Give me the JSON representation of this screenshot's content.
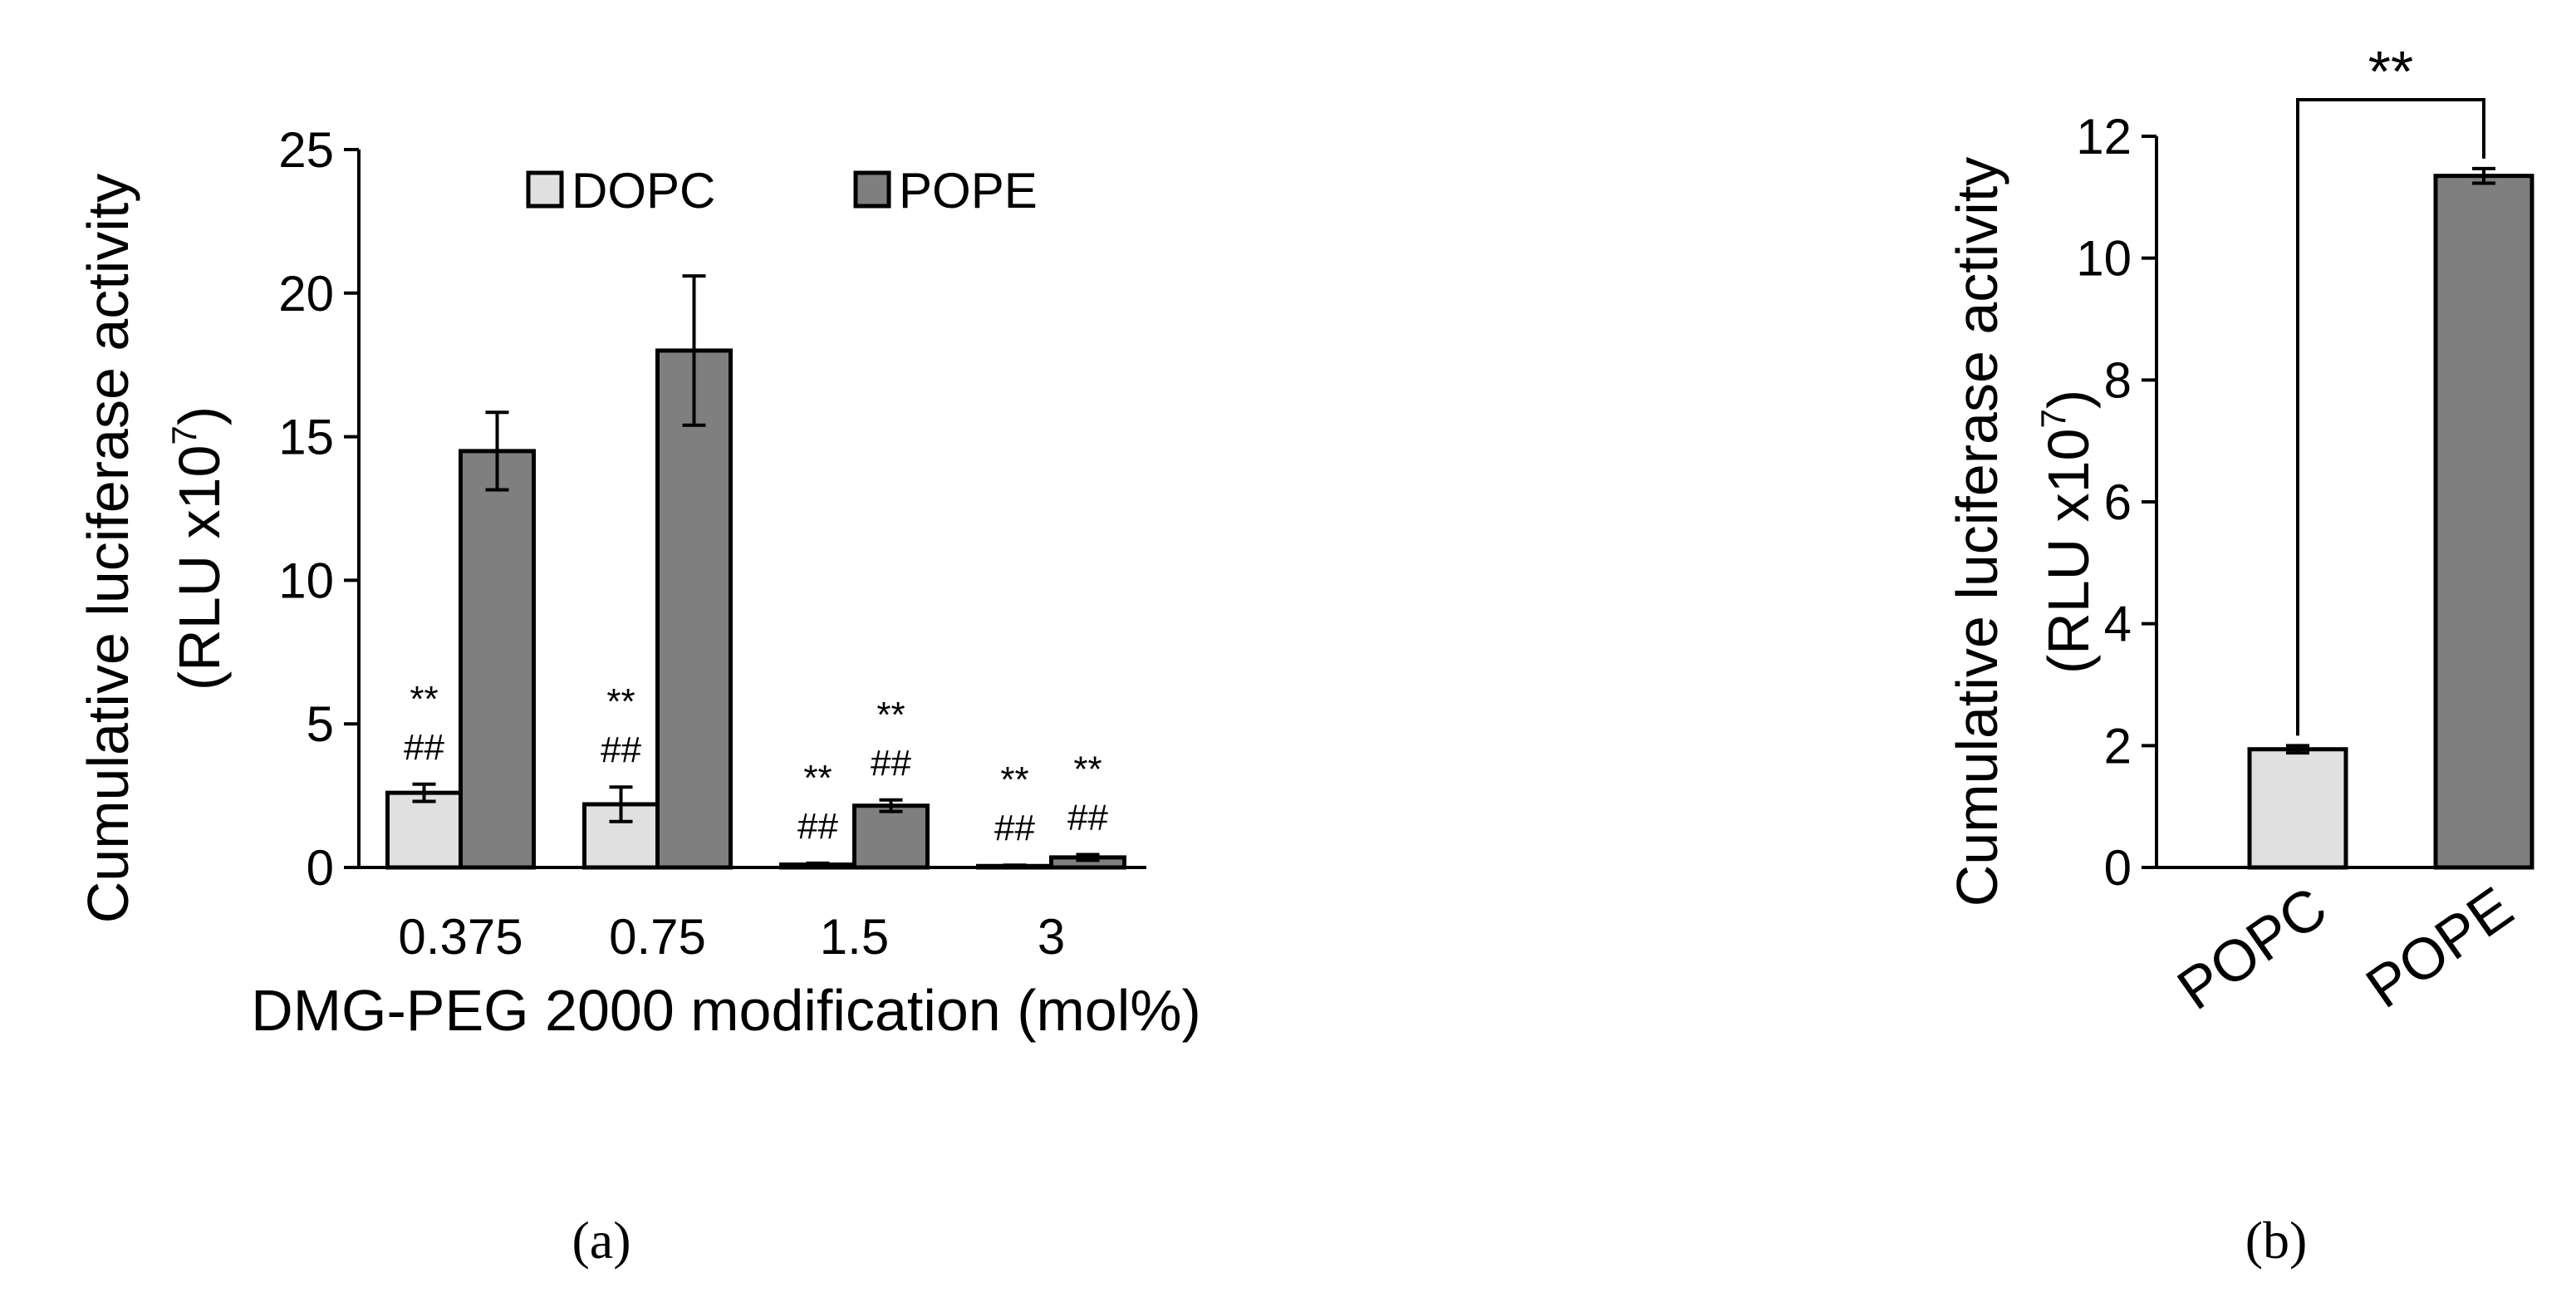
{
  "chart_data": [
    {
      "type": "bar",
      "ylabel": "Cumulative luciferase activity",
      "ylabel_unit": {
        "prefix": "(RLU x10",
        "sup": "7",
        "suffix": ")"
      },
      "xlabel": "DMG-PEG 2000 modification (mol%)",
      "caption": "(a)",
      "categories": [
        "0.375",
        "0.75",
        "1.5",
        "3"
      ],
      "series": [
        {
          "name": "DOPC",
          "color": "#e0e0e0",
          "values": [
            2.6,
            2.2,
            0.1,
            0.05
          ],
          "errors": [
            0.3,
            0.6,
            0.05,
            0.03
          ],
          "annotations": [
            [
              "**",
              "##"
            ],
            [
              "**",
              "##"
            ],
            [
              "**",
              "##"
            ],
            [
              "**",
              "##"
            ]
          ]
        },
        {
          "name": "POPE",
          "color": "#7f7f7f",
          "values": [
            14.5,
            18.0,
            2.15,
            0.35
          ],
          "errors": [
            1.35,
            2.6,
            0.2,
            0.1
          ],
          "annotations": [
            null,
            null,
            [
              "**",
              "##"
            ],
            [
              "**",
              "##"
            ]
          ]
        }
      ],
      "ylim": [
        0,
        25
      ],
      "yticks": [
        0,
        5,
        10,
        15,
        20,
        25
      ],
      "legend": "top"
    },
    {
      "type": "bar",
      "ylabel": "Cumulative luciferase activity",
      "ylabel_unit": {
        "prefix": "(RLU x10",
        "sup": "7",
        "suffix": ")"
      },
      "caption": "(b)",
      "categories": [
        "POPC",
        "POPE"
      ],
      "series": [
        {
          "colors": [
            "#e0e0e0",
            "#7f7f7f"
          ],
          "values": [
            1.94,
            11.35
          ],
          "errors": [
            0.06,
            0.12
          ]
        }
      ],
      "significance": "**",
      "ylim": [
        0,
        12
      ],
      "yticks": [
        0,
        2,
        4,
        6,
        8,
        10,
        12
      ]
    }
  ]
}
